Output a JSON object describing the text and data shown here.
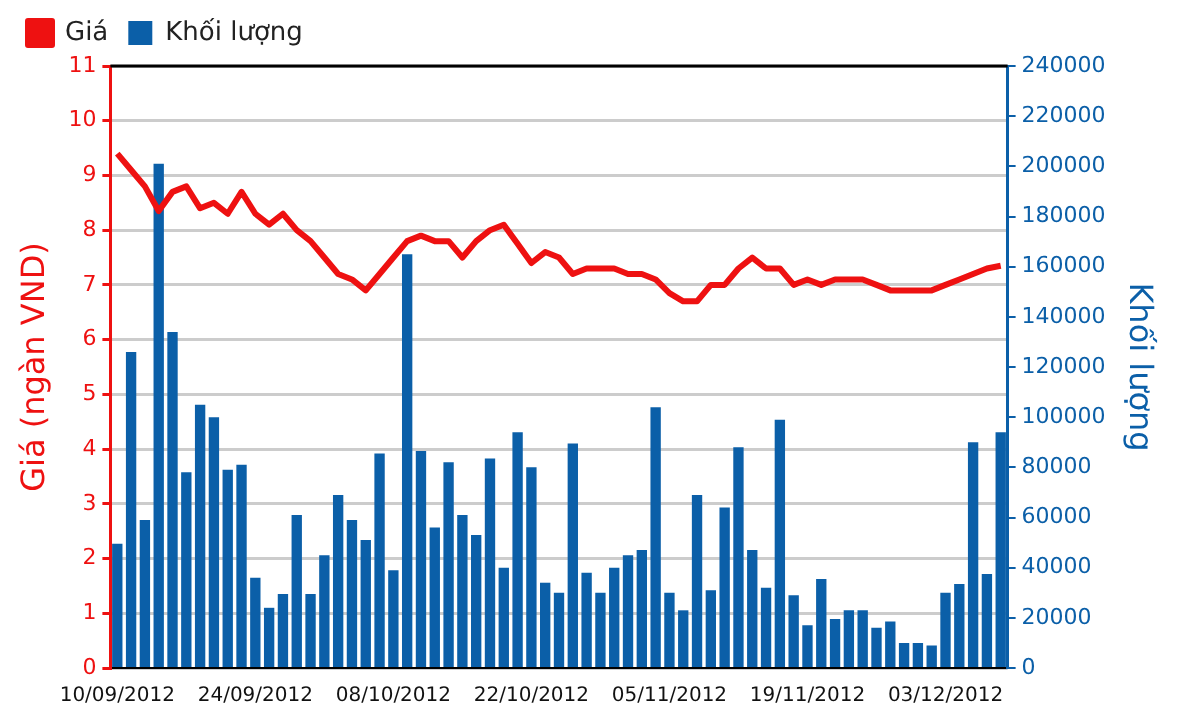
{
  "chart_data": {
    "type": "bar",
    "ylabel": "Giá (ngàn VND)",
    "y2label": "Khối lượng",
    "categories": [
      "10/09/2012",
      null,
      null,
      null,
      null,
      null,
      null,
      null,
      null,
      null,
      "24/09/2012",
      null,
      null,
      null,
      null,
      null,
      null,
      null,
      null,
      null,
      "08/10/2012",
      null,
      null,
      null,
      null,
      null,
      null,
      null,
      null,
      null,
      "22/10/2012",
      null,
      null,
      null,
      null,
      null,
      null,
      null,
      null,
      null,
      "05/11/2012",
      null,
      null,
      null,
      null,
      null,
      null,
      null,
      null,
      null,
      "19/11/2012",
      null,
      null,
      null,
      null,
      null,
      null,
      null,
      null,
      null,
      "03/12/2012",
      null,
      null,
      null,
      null
    ],
    "series": [
      {
        "name": "Giá",
        "type": "line",
        "axis": "y",
        "color": "#ee1111",
        "values": [
          9.4,
          9.1,
          8.8,
          8.35,
          8.7,
          8.8,
          8.4,
          8.5,
          8.3,
          8.7,
          8.3,
          8.1,
          8.3,
          8.0,
          7.8,
          7.5,
          7.2,
          7.1,
          6.9,
          7.2,
          7.5,
          7.8,
          7.9,
          7.8,
          7.8,
          7.5,
          7.8,
          8.0,
          8.1,
          7.75,
          7.4,
          7.6,
          7.5,
          7.2,
          7.3,
          7.3,
          7.3,
          7.2,
          7.2,
          7.1,
          6.85,
          6.7,
          6.7,
          7.0,
          7.0,
          7.3,
          7.5,
          7.3,
          7.3,
          7.0,
          7.1,
          7.0,
          7.1,
          7.1,
          7.1,
          7.0,
          6.9,
          6.9,
          6.9,
          6.9,
          7.0,
          7.1,
          7.2,
          7.3,
          7.35
        ]
      },
      {
        "name": "Khối lượng",
        "type": "bar",
        "axis": "y2",
        "color": "#0b5fa8",
        "values": [
          49500,
          126000,
          59000,
          201000,
          134000,
          78000,
          105000,
          100000,
          79000,
          81000,
          36000,
          24000,
          29500,
          61000,
          29500,
          45000,
          69000,
          59000,
          51000,
          85500,
          39000,
          165000,
          86500,
          56000,
          82000,
          61000,
          53000,
          83500,
          40000,
          94000,
          80000,
          34000,
          30000,
          89500,
          38000,
          30000,
          40000,
          45000,
          47000,
          104000,
          30000,
          23000,
          69000,
          31000,
          64000,
          88000,
          47000,
          32000,
          99000,
          29000,
          17000,
          35500,
          19500,
          23000,
          23000,
          16000,
          18500,
          10000,
          10000,
          9000,
          30000,
          33500,
          90000,
          37500,
          94000
        ]
      }
    ],
    "ylim": [
      0,
      11
    ],
    "yticks": [
      0,
      1,
      2,
      3,
      4,
      5,
      6,
      7,
      8,
      9,
      10,
      11
    ],
    "y2lim": [
      0,
      240000
    ],
    "y2ticks": [
      0,
      20000,
      40000,
      60000,
      80000,
      100000,
      120000,
      140000,
      160000,
      180000,
      200000,
      220000,
      240000
    ],
    "grid": "y",
    "legend": "top left",
    "marker": "none"
  }
}
